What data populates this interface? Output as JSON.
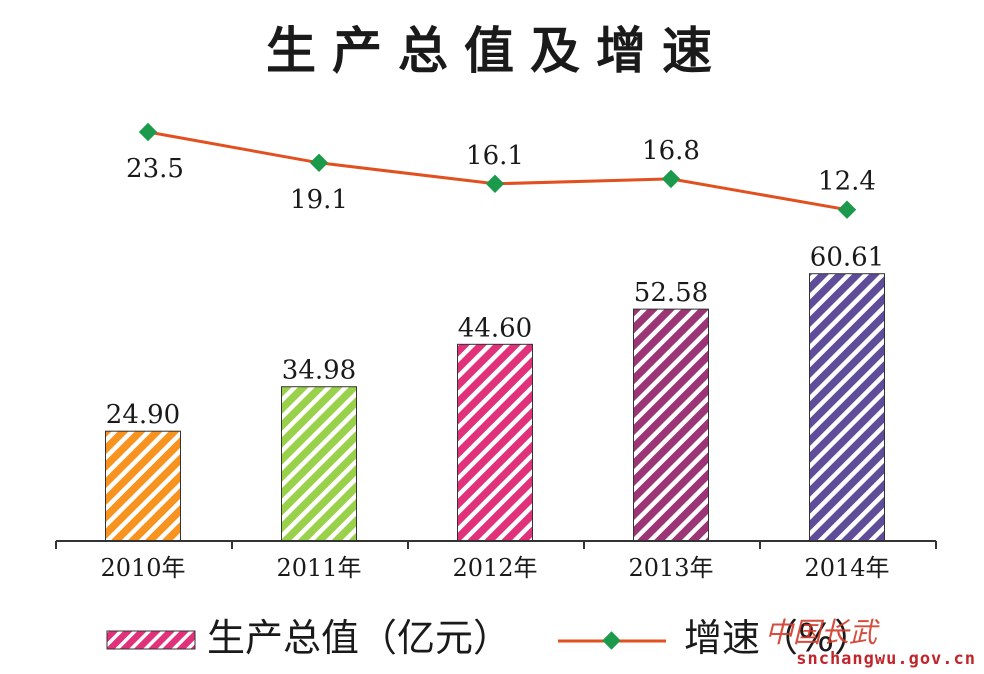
{
  "chart_data": {
    "type": "bar",
    "title": "生产总值及增速",
    "categories": [
      "2010年",
      "2011年",
      "2012年",
      "2013年",
      "2014年"
    ],
    "series": [
      {
        "name": "生产总值（亿元）",
        "kind": "bar",
        "values": [
          24.9,
          34.98,
          44.6,
          52.58,
          60.61
        ],
        "labels": [
          "24.90",
          "34.98",
          "44.60",
          "52.58",
          "60.61"
        ],
        "colors": [
          "#f7931e",
          "#9ad14b",
          "#e0317a",
          "#9b3575",
          "#5f4d9a"
        ]
      },
      {
        "name": "增速（%）",
        "kind": "line",
        "values": [
          23.5,
          19.1,
          16.1,
          16.8,
          12.4
        ],
        "labels": [
          "23.5",
          "19.1",
          "16.1",
          "16.8",
          "12.4"
        ],
        "line_color": "#e2501f",
        "marker_color": "#1c9a4b"
      }
    ],
    "legend": {
      "position": "bottom"
    },
    "grid": false
  },
  "watermark": {
    "logo": "中国长武",
    "url": "snchangwu.gov.cn"
  }
}
